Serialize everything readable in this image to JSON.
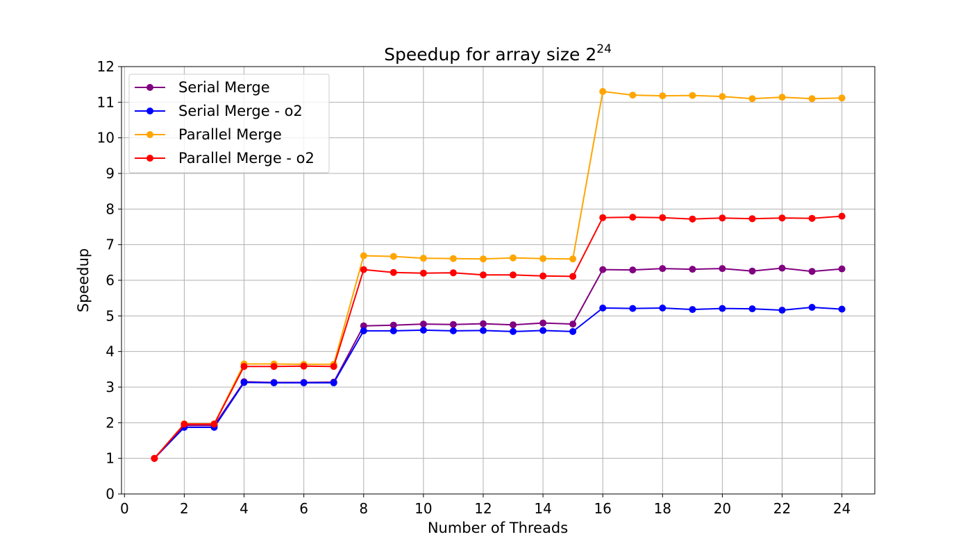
{
  "chart_data": {
    "type": "line",
    "title": "Speedup for array size 2",
    "title_superscript": "24",
    "xlabel": "Number of Threads",
    "ylabel": "Speedup",
    "xlim": [
      -0.1,
      25.1
    ],
    "ylim": [
      0,
      12
    ],
    "xticks": [
      0,
      2,
      4,
      6,
      8,
      10,
      12,
      14,
      16,
      18,
      20,
      22,
      24
    ],
    "yticks": [
      0,
      1,
      2,
      3,
      4,
      5,
      6,
      7,
      8,
      9,
      10,
      11,
      12
    ],
    "grid": true,
    "legend_position": "top-left",
    "x": [
      1,
      2,
      3,
      4,
      5,
      6,
      7,
      8,
      9,
      10,
      11,
      12,
      13,
      14,
      15,
      16,
      17,
      18,
      19,
      20,
      21,
      22,
      23,
      24
    ],
    "series": [
      {
        "name": "Serial Merge",
        "color": "#800080",
        "values": [
          1.0,
          1.92,
          1.92,
          3.15,
          3.13,
          3.13,
          3.14,
          4.72,
          4.74,
          4.77,
          4.76,
          4.78,
          4.75,
          4.8,
          4.77,
          6.3,
          6.29,
          6.33,
          6.31,
          6.33,
          6.26,
          6.34,
          6.25,
          6.32
        ]
      },
      {
        "name": "Serial Merge - o2",
        "color": "#0000ff",
        "values": [
          1.0,
          1.87,
          1.87,
          3.13,
          3.12,
          3.12,
          3.12,
          4.58,
          4.58,
          4.6,
          4.58,
          4.59,
          4.56,
          4.59,
          4.56,
          5.22,
          5.21,
          5.22,
          5.18,
          5.21,
          5.2,
          5.16,
          5.24,
          5.19
        ]
      },
      {
        "name": "Parallel Merge",
        "color": "#ffa500",
        "values": [
          1.0,
          1.97,
          1.97,
          3.65,
          3.65,
          3.64,
          3.64,
          6.69,
          6.67,
          6.62,
          6.61,
          6.6,
          6.63,
          6.61,
          6.6,
          11.3,
          11.2,
          11.18,
          11.19,
          11.16,
          11.1,
          11.14,
          11.1,
          11.12
        ]
      },
      {
        "name": "Parallel Merge - o2",
        "color": "#ff0000",
        "values": [
          1.0,
          1.96,
          1.96,
          3.58,
          3.58,
          3.59,
          3.58,
          6.3,
          6.22,
          6.2,
          6.21,
          6.15,
          6.15,
          6.12,
          6.11,
          7.76,
          7.77,
          7.76,
          7.72,
          7.75,
          7.73,
          7.75,
          7.74,
          7.8
        ]
      }
    ]
  }
}
